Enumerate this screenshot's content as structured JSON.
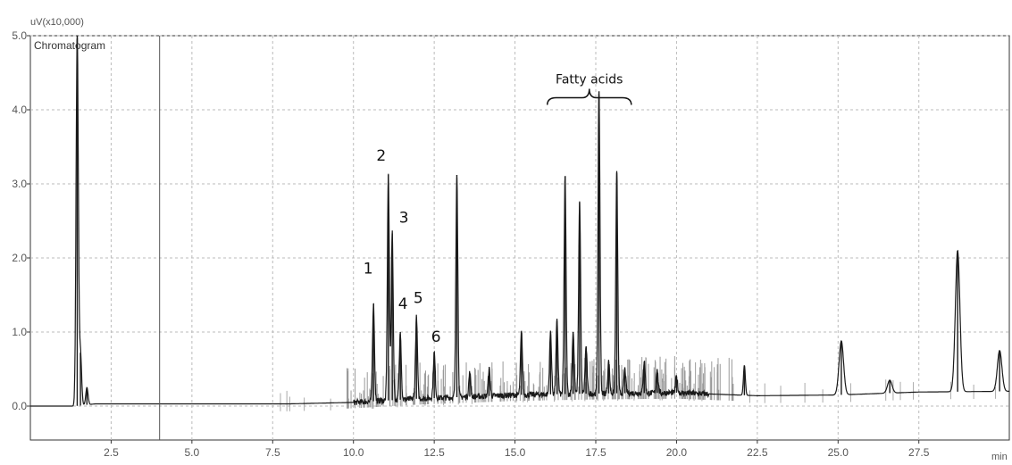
{
  "chart_data": {
    "type": "line",
    "title": "",
    "xlabel": "",
    "ylabel": "",
    "y_unit_label": "uV(x10,000)",
    "x_unit_label": "min",
    "legend": "Chromatogram",
    "legend_position": "top-left",
    "xlim": [
      0.0,
      30.3
    ],
    "ylim": [
      -0.45,
      5.0
    ],
    "x_ticks": [
      2.5,
      5.0,
      7.5,
      10.0,
      12.5,
      15.0,
      17.5,
      20.0,
      22.5,
      25.0,
      27.5
    ],
    "x_tick_labels": [
      "2.5",
      "5.0",
      "7.5",
      "10.0",
      "12.5",
      "15.0",
      "17.5",
      "20.0",
      "22.5",
      "25.0",
      "27.5"
    ],
    "y_ticks": [
      0.0,
      1.0,
      2.0,
      3.0,
      4.0,
      5.0
    ],
    "y_tick_labels": [
      "0.0",
      "1.0",
      "2.0",
      "3.0",
      "4.0",
      "5.0"
    ],
    "grid": true,
    "marker_line_x": 4.0,
    "series": [
      {
        "name": "",
        "baseline": [
          [
            0.0,
            0.0
          ],
          [
            1.4,
            0.0
          ],
          [
            2.0,
            0.03
          ],
          [
            5.0,
            0.03
          ],
          [
            8.0,
            0.03
          ],
          [
            10.0,
            0.05
          ],
          [
            12.0,
            0.1
          ],
          [
            15.0,
            0.15
          ],
          [
            17.5,
            0.17
          ],
          [
            20.0,
            0.18
          ],
          [
            22.5,
            0.14
          ],
          [
            25.0,
            0.15
          ],
          [
            27.5,
            0.19
          ],
          [
            30.3,
            0.2
          ]
        ],
        "peaks": [
          {
            "x": 1.45,
            "y": 5.0
          },
          {
            "x": 1.55,
            "y": 0.72
          },
          {
            "x": 1.75,
            "y": 0.25
          },
          {
            "x": 10.62,
            "y": 1.38,
            "label": "1"
          },
          {
            "x": 11.08,
            "y": 3.12,
            "label": "2"
          },
          {
            "x": 11.2,
            "y": 2.33,
            "label": "3"
          },
          {
            "x": 11.45,
            "y": 1.0,
            "label": "4"
          },
          {
            "x": 11.95,
            "y": 1.2,
            "label": "5"
          },
          {
            "x": 12.5,
            "y": 0.72,
            "label": "6"
          },
          {
            "x": 13.2,
            "y": 3.12
          },
          {
            "x": 13.6,
            "y": 0.45
          },
          {
            "x": 14.2,
            "y": 0.5
          },
          {
            "x": 15.2,
            "y": 1.0
          },
          {
            "x": 16.1,
            "y": 1.0
          },
          {
            "x": 16.3,
            "y": 1.15
          },
          {
            "x": 16.55,
            "y": 3.1
          },
          {
            "x": 16.8,
            "y": 1.0
          },
          {
            "x": 17.0,
            "y": 2.75
          },
          {
            "x": 17.2,
            "y": 0.8
          },
          {
            "x": 17.6,
            "y": 4.25
          },
          {
            "x": 17.9,
            "y": 0.6
          },
          {
            "x": 18.15,
            "y": 3.15
          },
          {
            "x": 18.4,
            "y": 0.5
          },
          {
            "x": 19.0,
            "y": 0.6
          },
          {
            "x": 19.4,
            "y": 0.5
          },
          {
            "x": 20.0,
            "y": 0.4
          },
          {
            "x": 22.1,
            "y": 0.55
          },
          {
            "x": 25.1,
            "y": 0.88
          },
          {
            "x": 26.6,
            "y": 0.35
          },
          {
            "x": 28.7,
            "y": 2.1
          },
          {
            "x": 30.0,
            "y": 0.75
          }
        ]
      }
    ],
    "annotations": [
      {
        "text": "Fatty acids",
        "bracket_from_x": 16.0,
        "bracket_to_x": 18.6,
        "y": 4.5
      }
    ]
  }
}
